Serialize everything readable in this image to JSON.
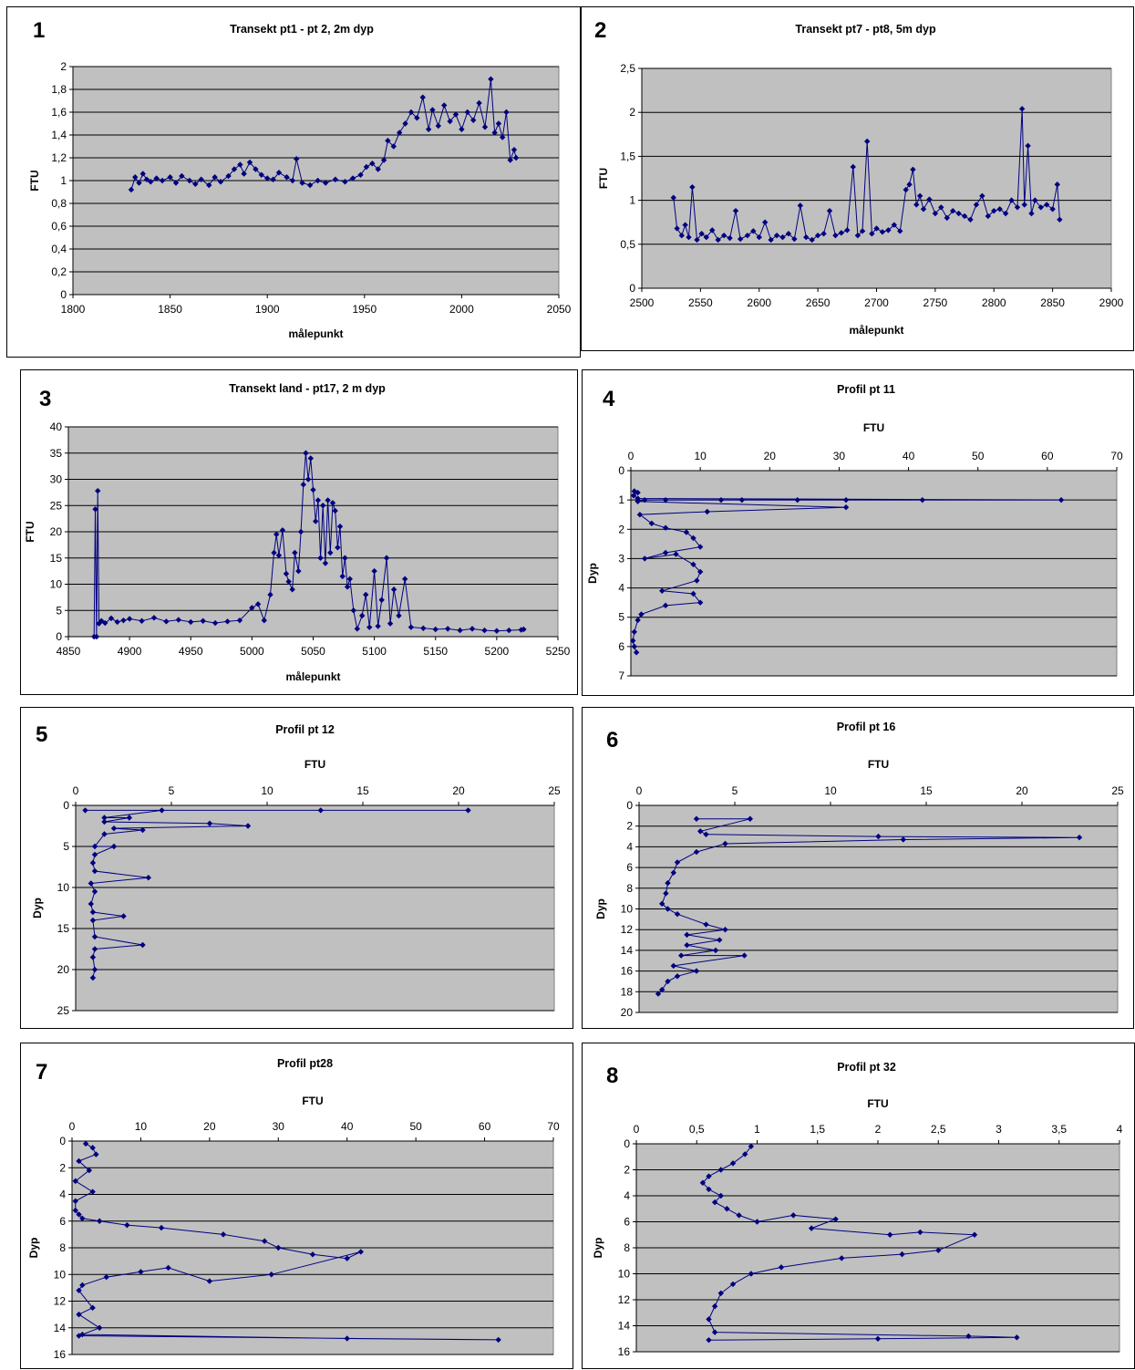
{
  "colors": {
    "plot_bg": "#c0c0c0",
    "series": "#000080",
    "grid": "#000000"
  },
  "chart_data": [
    {
      "panel_number": "1",
      "type": "line",
      "orientation": "horizontal",
      "title": "Transekt pt1 - pt 2, 2m dyp",
      "xlabel": "målepunkt",
      "ylabel": "FTU",
      "xlim": [
        1800,
        2050
      ],
      "ylim": [
        0,
        2
      ],
      "xticks": [
        "1800",
        "1850",
        "1900",
        "1950",
        "2000",
        "2050"
      ],
      "yticks": [
        "0",
        "0,2",
        "0,4",
        "0,6",
        "0,8",
        "1",
        "1,2",
        "1,4",
        "1,6",
        "1,8",
        "2"
      ],
      "grid": "horizontal",
      "x": [
        1830,
        1832,
        1834,
        1836,
        1838,
        1840,
        1843,
        1846,
        1850,
        1853,
        1856,
        1860,
        1863,
        1866,
        1870,
        1873,
        1876,
        1880,
        1883,
        1886,
        1888,
        1891,
        1894,
        1897,
        1900,
        1903,
        1906,
        1910,
        1913,
        1915,
        1918,
        1922,
        1926,
        1930,
        1935,
        1940,
        1944,
        1948,
        1951,
        1954,
        1957,
        1960,
        1962,
        1965,
        1968,
        1971,
        1974,
        1977,
        1980,
        1983,
        1985,
        1988,
        1991,
        1994,
        1997,
        2000,
        2003,
        2006,
        2009,
        2012,
        2015,
        2017,
        2019,
        2021,
        2023,
        2025,
        2027,
        2028
      ],
      "y": [
        0.92,
        1.03,
        0.98,
        1.06,
        1.01,
        0.99,
        1.02,
        1.0,
        1.03,
        0.98,
        1.04,
        1.0,
        0.97,
        1.01,
        0.96,
        1.03,
        0.99,
        1.04,
        1.1,
        1.14,
        1.06,
        1.16,
        1.1,
        1.05,
        1.02,
        1.01,
        1.07,
        1.03,
        1.0,
        1.19,
        0.98,
        0.96,
        1.0,
        0.98,
        1.01,
        0.99,
        1.02,
        1.05,
        1.12,
        1.15,
        1.1,
        1.18,
        1.35,
        1.3,
        1.42,
        1.5,
        1.6,
        1.55,
        1.73,
        1.45,
        1.62,
        1.48,
        1.66,
        1.52,
        1.58,
        1.45,
        1.6,
        1.53,
        1.68,
        1.47,
        1.89,
        1.42,
        1.5,
        1.38,
        1.6,
        1.18,
        1.27,
        1.2
      ]
    },
    {
      "panel_number": "2",
      "type": "line",
      "orientation": "horizontal",
      "title": "Transekt pt7 - pt8, 5m dyp",
      "xlabel": "målepunkt",
      "ylabel": "FTU",
      "xlim": [
        2500,
        2900
      ],
      "ylim": [
        0,
        2.5
      ],
      "xticks": [
        "2500",
        "2550",
        "2600",
        "2650",
        "2700",
        "2750",
        "2800",
        "2850",
        "2900"
      ],
      "yticks": [
        "0",
        "0,5",
        "1",
        "1,5",
        "2",
        "2,5"
      ],
      "grid": "horizontal",
      "x": [
        2527,
        2530,
        2534,
        2537,
        2540,
        2543,
        2547,
        2551,
        2555,
        2560,
        2565,
        2570,
        2575,
        2580,
        2584,
        2590,
        2595,
        2600,
        2605,
        2610,
        2615,
        2620,
        2625,
        2630,
        2635,
        2640,
        2645,
        2650,
        2655,
        2660,
        2665,
        2670,
        2675,
        2680,
        2684,
        2688,
        2692,
        2696,
        2700,
        2705,
        2710,
        2715,
        2720,
        2725,
        2728,
        2731,
        2734,
        2737,
        2740,
        2745,
        2750,
        2755,
        2760,
        2765,
        2770,
        2775,
        2780,
        2785,
        2790,
        2795,
        2800,
        2805,
        2810,
        2815,
        2820,
        2824,
        2826,
        2829,
        2832,
        2835,
        2840,
        2845,
        2850,
        2854,
        2856
      ],
      "y": [
        1.03,
        0.68,
        0.6,
        0.72,
        0.58,
        1.15,
        0.55,
        0.62,
        0.58,
        0.66,
        0.55,
        0.6,
        0.57,
        0.88,
        0.56,
        0.6,
        0.65,
        0.58,
        0.75,
        0.55,
        0.6,
        0.58,
        0.62,
        0.56,
        0.94,
        0.58,
        0.55,
        0.6,
        0.62,
        0.88,
        0.6,
        0.63,
        0.66,
        1.38,
        0.6,
        0.65,
        1.67,
        0.62,
        0.68,
        0.64,
        0.66,
        0.72,
        0.65,
        1.12,
        1.18,
        1.35,
        0.95,
        1.05,
        0.9,
        1.01,
        0.85,
        0.92,
        0.8,
        0.88,
        0.85,
        0.82,
        0.78,
        0.95,
        1.05,
        0.82,
        0.88,
        0.9,
        0.85,
        1.0,
        0.92,
        2.04,
        0.95,
        1.62,
        0.85,
        1.0,
        0.92,
        0.95,
        0.9,
        1.18,
        0.78
      ]
    },
    {
      "panel_number": "3",
      "type": "line",
      "orientation": "horizontal",
      "title": "Transekt land - pt17, 2 m dyp",
      "xlabel": "målepunkt",
      "ylabel": "FTU",
      "xlim": [
        4850,
        5250
      ],
      "ylim": [
        0,
        40
      ],
      "xticks": [
        "4850",
        "4900",
        "4950",
        "5000",
        "5050",
        "5100",
        "5150",
        "5200",
        "5250"
      ],
      "yticks": [
        "0",
        "5",
        "10",
        "15",
        "20",
        "25",
        "30",
        "35",
        "40"
      ],
      "grid": "horizontal",
      "x": [
        4871,
        4872,
        4873,
        4874,
        4875,
        4877,
        4880,
        4885,
        4890,
        4895,
        4900,
        4910,
        4920,
        4930,
        4940,
        4950,
        4960,
        4970,
        4980,
        4990,
        5000,
        5005,
        5010,
        5015,
        5018,
        5020,
        5022,
        5025,
        5028,
        5030,
        5033,
        5035,
        5038,
        5040,
        5042,
        5044,
        5046,
        5048,
        5050,
        5052,
        5054,
        5056,
        5058,
        5060,
        5062,
        5064,
        5066,
        5068,
        5070,
        5072,
        5074,
        5076,
        5078,
        5080,
        5083,
        5086,
        5090,
        5093,
        5096,
        5100,
        5103,
        5106,
        5110,
        5113,
        5116,
        5120,
        5125,
        5130,
        5140,
        5150,
        5160,
        5170,
        5180,
        5190,
        5200,
        5210,
        5220,
        5222
      ],
      "y": [
        0,
        24.3,
        0,
        27.8,
        2.5,
        3.0,
        2.6,
        3.5,
        2.8,
        3.1,
        3.4,
        3.0,
        3.6,
        2.9,
        3.2,
        2.8,
        3.0,
        2.6,
        2.9,
        3.1,
        5.5,
        6.2,
        3.1,
        8.0,
        16.0,
        19.5,
        15.5,
        20.3,
        12.0,
        10.5,
        9.0,
        16.0,
        12.5,
        20.0,
        29.0,
        35.0,
        30.0,
        34.0,
        28.0,
        22.0,
        26.0,
        15.0,
        25.0,
        14.0,
        26.0,
        16.0,
        25.5,
        24.0,
        17.0,
        21.0,
        11.5,
        15.0,
        9.5,
        11.0,
        5.0,
        1.5,
        4.0,
        8.0,
        1.8,
        12.5,
        2.0,
        7.0,
        15.0,
        2.5,
        9.0,
        4.0,
        11.0,
        1.8,
        1.6,
        1.4,
        1.5,
        1.2,
        1.5,
        1.2,
        1.1,
        1.2,
        1.3,
        1.4
      ]
    },
    {
      "panel_number": "4",
      "type": "line",
      "orientation": "profile",
      "title": "Profil pt 11",
      "xlabel": "FTU",
      "ylabel": "Dyp",
      "xlim": [
        0,
        70
      ],
      "ylim": [
        0,
        7
      ],
      "y_inverted": true,
      "x_axis_position": "top",
      "xticks": [
        "0",
        "10",
        "20",
        "30",
        "40",
        "50",
        "60",
        "70"
      ],
      "yticks": [
        "0",
        "1",
        "2",
        "3",
        "4",
        "5",
        "6",
        "7"
      ],
      "grid": "horizontal",
      "x": [
        0.5,
        1.0,
        0.4,
        1.0,
        62.0,
        42.0,
        31.0,
        24.0,
        16.0,
        13.0,
        5.0,
        2.0,
        1.0,
        31.0,
        11.0,
        1.3,
        3.0,
        5.0,
        8.0,
        9.0,
        10.0,
        5.0,
        2.0,
        6.5,
        9.0,
        10.0,
        9.5,
        4.5,
        9.0,
        10.0,
        5.0,
        1.5,
        1.0,
        0.5,
        0.3,
        0.5,
        0.8
      ],
      "y": [
        0.7,
        0.75,
        0.85,
        0.95,
        1.0,
        1.0,
        1.0,
        1.0,
        1.0,
        1.0,
        1.0,
        1.0,
        1.05,
        1.25,
        1.4,
        1.5,
        1.8,
        1.95,
        2.1,
        2.3,
        2.6,
        2.8,
        3.0,
        2.85,
        3.2,
        3.45,
        3.75,
        4.1,
        4.2,
        4.5,
        4.6,
        4.9,
        5.1,
        5.5,
        5.8,
        6.0,
        6.2
      ]
    },
    {
      "panel_number": "5",
      "type": "line",
      "orientation": "profile",
      "title": "Profil pt 12",
      "xlabel": "FTU",
      "ylabel": "Dyp",
      "xlim": [
        0,
        25
      ],
      "ylim": [
        0,
        25
      ],
      "y_inverted": true,
      "x_axis_position": "top",
      "xticks": [
        "0",
        "5",
        "10",
        "15",
        "20",
        "25"
      ],
      "yticks": [
        "0",
        "5",
        "10",
        "15",
        "20",
        "25"
      ],
      "grid": "horizontal",
      "x": [
        0.5,
        20.5,
        12.8,
        4.5,
        1.5,
        2.8,
        1.5,
        7.0,
        9.0,
        2.0,
        3.5,
        1.5,
        1.0,
        2.0,
        1.0,
        0.9,
        1.0,
        3.8,
        0.8,
        1.0,
        0.8,
        0.9,
        2.5,
        0.9,
        1.0,
        3.5,
        1.0,
        0.9,
        1.0,
        0.9
      ],
      "y": [
        0.6,
        0.6,
        0.6,
        0.6,
        1.5,
        1.5,
        2.0,
        2.2,
        2.5,
        2.8,
        3.0,
        3.5,
        5.0,
        5.0,
        6.0,
        7.0,
        8.0,
        8.8,
        9.5,
        10.5,
        12.0,
        13.0,
        13.5,
        14.0,
        16.0,
        17.0,
        17.5,
        18.5,
        20.0,
        21.0
      ]
    },
    {
      "panel_number": "6",
      "type": "line",
      "orientation": "profile",
      "title": "Profil pt 16",
      "xlabel": "FTU",
      "ylabel": "Dyp",
      "xlim": [
        0,
        25
      ],
      "ylim": [
        0,
        20
      ],
      "y_inverted": true,
      "x_axis_position": "top",
      "xticks": [
        "0",
        "5",
        "10",
        "15",
        "20",
        "25"
      ],
      "yticks": [
        "0",
        "2",
        "4",
        "6",
        "8",
        "10",
        "12",
        "14",
        "16",
        "18",
        "20"
      ],
      "grid": "horizontal",
      "x": [
        3.0,
        5.8,
        3.2,
        3.5,
        12.5,
        23.0,
        13.8,
        4.5,
        3.0,
        2.0,
        1.8,
        1.5,
        1.4,
        1.2,
        1.5,
        2.0,
        3.5,
        4.5,
        2.5,
        4.2,
        2.5,
        4.0,
        2.2,
        5.5,
        1.8,
        3.0,
        2.0,
        1.5,
        1.2,
        1.0
      ],
      "y": [
        1.3,
        1.3,
        2.5,
        2.8,
        3.0,
        3.1,
        3.3,
        3.7,
        4.5,
        5.5,
        6.5,
        7.5,
        8.5,
        9.5,
        10.0,
        10.5,
        11.5,
        12.0,
        12.5,
        13.0,
        13.5,
        14.0,
        14.5,
        14.5,
        15.5,
        16.0,
        16.5,
        17.0,
        17.8,
        18.2
      ]
    },
    {
      "panel_number": "7",
      "type": "line",
      "orientation": "profile",
      "title": "Profil pt28",
      "xlabel": "FTU",
      "ylabel": "Dyp",
      "xlim": [
        0,
        70
      ],
      "ylim": [
        0,
        16
      ],
      "y_inverted": true,
      "x_axis_position": "top",
      "xticks": [
        "0",
        "10",
        "20",
        "30",
        "40",
        "50",
        "60",
        "70"
      ],
      "yticks": [
        "0",
        "2",
        "4",
        "6",
        "8",
        "10",
        "12",
        "14",
        "16"
      ],
      "grid": "horizontal",
      "x": [
        2.0,
        3.0,
        3.5,
        1.0,
        2.5,
        0.5,
        3.0,
        0.5,
        0.5,
        1.0,
        1.5,
        4.0,
        8.0,
        13.0,
        22.0,
        28.0,
        30.0,
        35.0,
        40.0,
        42.0,
        29.0,
        20.0,
        14.0,
        10.0,
        5.0,
        1.5,
        1.0,
        3.0,
        1.0,
        4.0,
        1.5,
        40.0,
        62.0,
        1.0
      ],
      "y": [
        0.2,
        0.5,
        1.0,
        1.5,
        2.2,
        3.0,
        3.8,
        4.5,
        5.2,
        5.5,
        5.8,
        6.0,
        6.3,
        6.5,
        7.0,
        7.5,
        8.0,
        8.5,
        8.8,
        8.3,
        10.0,
        10.5,
        9.5,
        9.8,
        10.2,
        10.8,
        11.2,
        12.5,
        13.0,
        14.0,
        14.5,
        14.8,
        14.9,
        14.6
      ]
    },
    {
      "panel_number": "8",
      "type": "line",
      "orientation": "profile",
      "title": "Profil pt 32",
      "xlabel": "FTU",
      "ylabel": "Dyp",
      "xlim": [
        0,
        4
      ],
      "ylim": [
        0,
        16
      ],
      "y_inverted": true,
      "x_axis_position": "top",
      "xticks": [
        "0",
        "0,5",
        "1",
        "1,5",
        "2",
        "2,5",
        "3",
        "3,5",
        "4"
      ],
      "yticks": [
        "0",
        "2",
        "4",
        "6",
        "8",
        "10",
        "12",
        "14",
        "16"
      ],
      "grid": "horizontal",
      "x": [
        0.95,
        0.9,
        0.8,
        0.7,
        0.6,
        0.55,
        0.6,
        0.7,
        0.65,
        0.75,
        0.85,
        1.0,
        1.3,
        1.65,
        1.45,
        2.1,
        2.35,
        2.8,
        2.5,
        2.2,
        1.7,
        1.2,
        0.95,
        0.8,
        0.7,
        0.65,
        0.6,
        0.65,
        2.75,
        3.15,
        2.0,
        0.6
      ],
      "y": [
        0.2,
        0.8,
        1.5,
        2.0,
        2.5,
        3.0,
        3.5,
        4.0,
        4.5,
        5.0,
        5.5,
        6.0,
        5.5,
        5.8,
        6.5,
        7.0,
        6.8,
        7.0,
        8.2,
        8.5,
        8.8,
        9.5,
        10.0,
        10.8,
        11.5,
        12.5,
        13.5,
        14.5,
        14.8,
        14.9,
        15.0,
        15.1
      ]
    }
  ]
}
